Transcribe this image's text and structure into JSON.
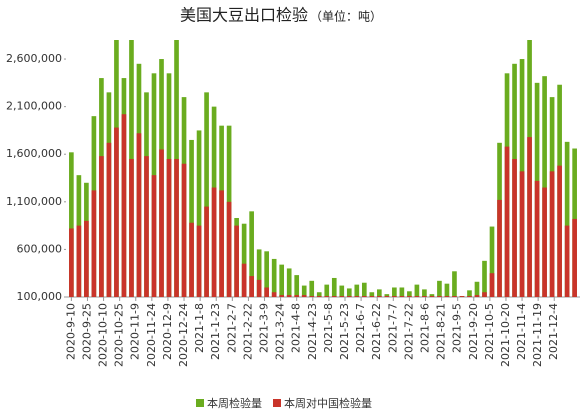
{
  "chart_data": {
    "type": "bar",
    "title": "美国大豆出口检验",
    "subtitle": "（单位：吨）",
    "x": [
      0,
      7,
      14,
      21,
      28,
      35,
      42,
      49,
      56,
      63,
      70,
      77,
      84,
      91,
      98,
      105,
      112,
      119,
      126,
      133,
      140,
      147,
      154,
      161,
      168,
      175,
      182,
      189,
      196,
      203,
      210,
      217,
      224,
      231,
      238,
      245,
      252,
      259,
      266,
      273,
      280,
      287,
      294,
      301,
      308,
      315,
      322,
      329,
      336,
      343,
      350,
      357,
      364,
      371,
      378,
      385,
      392,
      399,
      406,
      413,
      420,
      427,
      434,
      441,
      448,
      455,
      462,
      469
    ],
    "series": [
      {
        "name": "本周检验量",
        "color": "#6aac1f",
        "values": [
          1620000,
          1380000,
          1300000,
          2000000,
          2400000,
          2250000,
          2800000,
          2400000,
          2800000,
          2550000,
          2250000,
          2450000,
          2600000,
          2450000,
          2800000,
          2200000,
          1750000,
          1850000,
          2250000,
          2100000,
          1900000,
          1900000,
          930000,
          870000,
          1000000,
          600000,
          580000,
          500000,
          440000,
          400000,
          330000,
          220000,
          270000,
          150000,
          230000,
          300000,
          220000,
          190000,
          230000,
          250000,
          150000,
          180000,
          130000,
          200000,
          200000,
          160000,
          230000,
          180000,
          130000,
          270000,
          240000,
          370000,
          110000,
          170000,
          260000,
          480000,
          840000,
          1720000,
          2450000,
          2550000,
          2600000,
          2800000,
          2350000,
          2420000,
          2200000,
          2330000,
          1730000,
          1660000
        ]
      },
      {
        "name": "本周对中国检验量",
        "color": "#c9342a",
        "values": [
          820000,
          850000,
          900000,
          1220000,
          1580000,
          1720000,
          1880000,
          2020000,
          1550000,
          1820000,
          1580000,
          1380000,
          1650000,
          1550000,
          1550000,
          1500000,
          880000,
          850000,
          1050000,
          1250000,
          1220000,
          1100000,
          850000,
          450000,
          320000,
          280000,
          200000,
          150000,
          120000,
          120000,
          120000,
          120000,
          110000,
          110000,
          110000,
          110000,
          110000,
          110000,
          110000,
          110000,
          110000,
          110000,
          110000,
          110000,
          110000,
          110000,
          110000,
          110000,
          110000,
          110000,
          110000,
          110000,
          110000,
          110000,
          120000,
          150000,
          350000,
          1120000,
          1680000,
          1550000,
          1420000,
          1780000,
          1320000,
          1250000,
          1420000,
          1480000,
          850000,
          920000
        ]
      }
    ],
    "xlim": [
      -5,
      474
    ],
    "xticks": [
      {
        "value": 0,
        "label": "2020-9-10"
      },
      {
        "value": 15,
        "label": "2020-9-25"
      },
      {
        "value": 30,
        "label": "2020-10-10"
      },
      {
        "value": 45,
        "label": "2020-10-25"
      },
      {
        "value": 60,
        "label": "2020-11-9"
      },
      {
        "value": 75,
        "label": "2020-11-24"
      },
      {
        "value": 90,
        "label": "2020-12-9"
      },
      {
        "value": 105,
        "label": "2020-12-24"
      },
      {
        "value": 120,
        "label": "2021-1-8"
      },
      {
        "value": 135,
        "label": "2021-1-23"
      },
      {
        "value": 150,
        "label": "2021-2-7"
      },
      {
        "value": 165,
        "label": "2021-2-22"
      },
      {
        "value": 180,
        "label": "2021-3-9"
      },
      {
        "value": 195,
        "label": "2021-3-24"
      },
      {
        "value": 210,
        "label": "2021-4-8"
      },
      {
        "value": 225,
        "label": "2021-4-23"
      },
      {
        "value": 240,
        "label": "2021-5-8"
      },
      {
        "value": 255,
        "label": "2021-5-23"
      },
      {
        "value": 270,
        "label": "2021-6-7"
      },
      {
        "value": 285,
        "label": "2021-6-22"
      },
      {
        "value": 300,
        "label": "2021-7-7"
      },
      {
        "value": 315,
        "label": "2021-7-22"
      },
      {
        "value": 330,
        "label": "2021-8-6"
      },
      {
        "value": 345,
        "label": "2021-8-21"
      },
      {
        "value": 360,
        "label": "2021-9-5"
      },
      {
        "value": 375,
        "label": "2021-9-20"
      },
      {
        "value": 390,
        "label": "2021-10-5"
      },
      {
        "value": 405,
        "label": "2021-10-20"
      },
      {
        "value": 420,
        "label": "2021-11-4"
      },
      {
        "value": 435,
        "label": "2021-11-19"
      },
      {
        "value": 450,
        "label": "2021-12-4"
      }
    ],
    "ylim": [
      100000,
      2800000
    ],
    "yticks": [
      {
        "value": 100000,
        "label": "100,000"
      },
      {
        "value": 600000,
        "label": "600,000"
      },
      {
        "value": 1100000,
        "label": "1,100,000"
      },
      {
        "value": 1600000,
        "label": "1,600,000"
      },
      {
        "value": 2100000,
        "label": "2,100,000"
      },
      {
        "value": 2600000,
        "label": "2,600,000"
      }
    ],
    "legend": "bottom"
  }
}
